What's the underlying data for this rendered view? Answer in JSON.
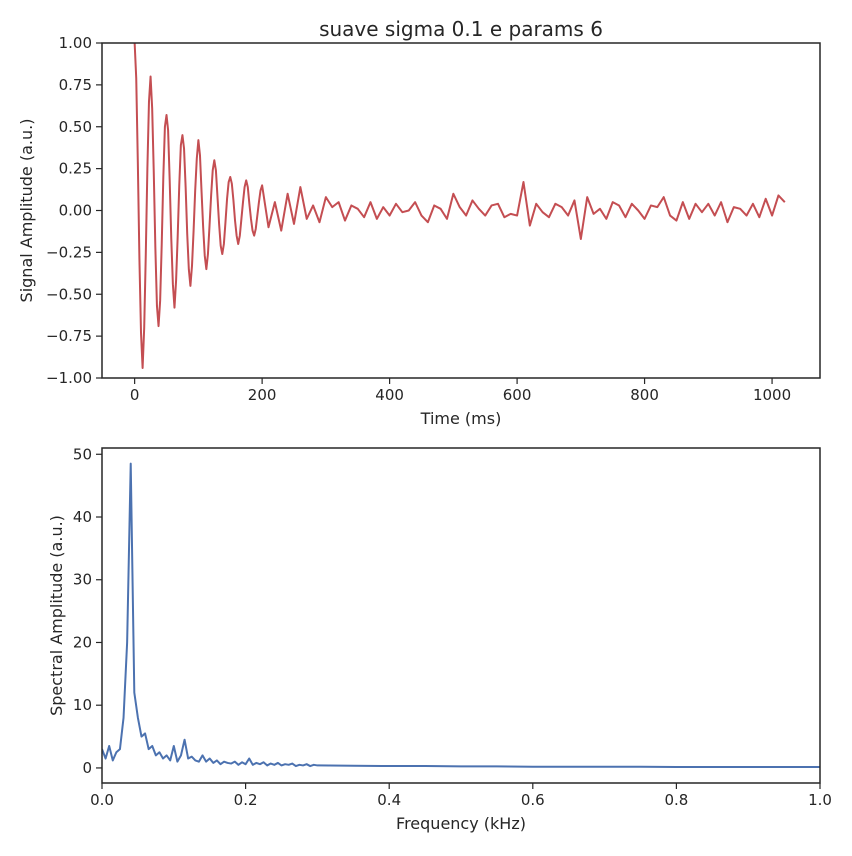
{
  "chart_data": [
    {
      "type": "line",
      "title": "suave sigma 0.1 e params 6",
      "xlabel": "Time (ms)",
      "ylabel": "Signal Amplitude (a.u.)",
      "color": "#c44e52",
      "x": [
        0,
        2.5,
        5,
        7.5,
        10,
        12.5,
        15,
        17.5,
        20,
        22.5,
        25,
        27.5,
        30,
        32.5,
        35,
        37.5,
        40,
        42.5,
        45,
        47.5,
        50,
        52.5,
        55,
        57.5,
        60,
        62.5,
        65,
        67.5,
        70,
        72.5,
        75,
        77.5,
        80,
        82.5,
        85,
        87.5,
        90,
        92.5,
        95,
        97.5,
        100,
        102.5,
        105,
        107.5,
        110,
        112.5,
        115,
        117.5,
        120,
        122.5,
        125,
        127.5,
        130,
        132.5,
        135,
        137.5,
        140,
        142.5,
        145,
        147.5,
        150,
        152.5,
        155,
        157.5,
        160,
        162.5,
        165,
        167.5,
        170,
        172.5,
        175,
        177.5,
        180,
        182.5,
        185,
        187.5,
        190,
        192.5,
        195,
        197.5,
        200,
        210,
        220,
        230,
        240,
        250,
        260,
        270,
        280,
        290,
        300,
        310,
        320,
        330,
        340,
        350,
        360,
        370,
        380,
        390,
        400,
        410,
        420,
        430,
        440,
        450,
        460,
        470,
        480,
        490,
        500,
        510,
        520,
        530,
        540,
        550,
        560,
        570,
        580,
        590,
        600,
        610,
        620,
        630,
        640,
        650,
        660,
        670,
        680,
        690,
        700,
        710,
        720,
        730,
        740,
        750,
        760,
        770,
        780,
        790,
        800,
        810,
        820,
        830,
        840,
        850,
        860,
        870,
        880,
        890,
        900,
        910,
        920,
        930,
        940,
        950,
        960,
        970,
        980,
        990,
        1000,
        1010,
        1020
      ],
      "values": [
        1.0,
        0.79,
        0.29,
        -0.29,
        -0.73,
        -0.94,
        -0.7,
        -0.26,
        0.25,
        0.65,
        0.8,
        0.61,
        0.23,
        -0.22,
        -0.57,
        -0.69,
        -0.54,
        -0.2,
        0.2,
        0.5,
        0.57,
        0.48,
        0.18,
        -0.17,
        -0.44,
        -0.58,
        -0.42,
        -0.16,
        0.15,
        0.39,
        0.45,
        0.37,
        0.14,
        -0.14,
        -0.35,
        -0.45,
        -0.33,
        -0.12,
        0.12,
        0.31,
        0.42,
        0.33,
        0.11,
        -0.1,
        -0.27,
        -0.35,
        -0.26,
        -0.09,
        0.09,
        0.24,
        0.3,
        0.24,
        0.08,
        -0.08,
        -0.21,
        -0.26,
        -0.2,
        -0.07,
        0.07,
        0.17,
        0.2,
        0.16,
        0.06,
        -0.06,
        -0.15,
        -0.2,
        -0.15,
        -0.05,
        0.05,
        0.14,
        0.18,
        0.14,
        0.04,
        -0.05,
        -0.12,
        -0.15,
        -0.11,
        -0.03,
        0.05,
        0.12,
        0.15,
        -0.1,
        0.05,
        -0.12,
        0.1,
        -0.08,
        0.14,
        -0.05,
        0.03,
        -0.07,
        0.08,
        0.02,
        0.05,
        -0.06,
        0.03,
        0.01,
        -0.04,
        0.05,
        -0.05,
        0.02,
        -0.03,
        0.04,
        -0.01,
        0.0,
        0.05,
        -0.03,
        -0.07,
        0.03,
        0.01,
        -0.05,
        0.1,
        0.02,
        -0.03,
        0.06,
        0.01,
        -0.03,
        0.03,
        0.04,
        -0.04,
        -0.02,
        -0.03,
        0.17,
        -0.09,
        0.04,
        -0.01,
        -0.04,
        0.04,
        0.02,
        -0.03,
        0.06,
        -0.17,
        0.08,
        -0.02,
        0.01,
        -0.05,
        0.05,
        0.03,
        -0.04,
        0.04,
        0.0,
        -0.05,
        0.03,
        0.02,
        0.08,
        -0.03,
        -0.06,
        0.05,
        -0.05,
        0.04,
        -0.01,
        0.04,
        -0.03,
        0.05,
        -0.07,
        0.02,
        0.01,
        -0.03,
        0.04,
        -0.04,
        0.07,
        -0.03,
        0.09,
        0.05
      ],
      "xlim": [
        -51.2,
        1075.2
      ],
      "ylim": [
        -1,
        1
      ],
      "xticks": [
        0,
        200,
        400,
        600,
        800,
        1000
      ],
      "yticks": [
        {
          "value": -1,
          "label": "−1.00"
        },
        {
          "value": -0.75,
          "label": "−0.75"
        },
        {
          "value": -0.5,
          "label": "−0.50"
        },
        {
          "value": -0.25,
          "label": "−0.25"
        },
        {
          "value": 0,
          "label": "0.00"
        },
        {
          "value": 0.25,
          "label": "0.25"
        },
        {
          "value": 0.5,
          "label": "0.50"
        },
        {
          "value": 0.75,
          "label": "0.75"
        },
        {
          "value": 1,
          "label": "1.00"
        }
      ]
    },
    {
      "type": "line",
      "xlabel": "Frequency (kHz)",
      "ylabel": "Spectral Amplitude (a.u.)",
      "color": "#4c72b0",
      "x": [
        0,
        0.005,
        0.01,
        0.015,
        0.02,
        0.025,
        0.03,
        0.035,
        0.04,
        0.045,
        0.05,
        0.055,
        0.06,
        0.065,
        0.07,
        0.075,
        0.08,
        0.085,
        0.09,
        0.095,
        0.1,
        0.105,
        0.11,
        0.115,
        0.12,
        0.125,
        0.13,
        0.135,
        0.14,
        0.145,
        0.15,
        0.155,
        0.16,
        0.165,
        0.17,
        0.175,
        0.18,
        0.185,
        0.19,
        0.195,
        0.2,
        0.205,
        0.21,
        0.215,
        0.22,
        0.225,
        0.23,
        0.235,
        0.24,
        0.245,
        0.25,
        0.255,
        0.26,
        0.265,
        0.27,
        0.275,
        0.28,
        0.285,
        0.29,
        0.295,
        0.3,
        0.35,
        0.4,
        0.45,
        0.5,
        0.55,
        0.6,
        0.65,
        0.7,
        0.75,
        0.8,
        0.85,
        0.9,
        0.95,
        1.0
      ],
      "values": [
        3,
        1.5,
        3.5,
        1.2,
        2.5,
        3,
        8,
        20,
        48.5,
        12,
        8,
        5,
        5.5,
        3,
        3.5,
        2,
        2.5,
        1.5,
        2,
        1.2,
        3.5,
        1,
        2,
        4.5,
        1.5,
        1.8,
        1.2,
        1,
        2,
        1,
        1.5,
        0.8,
        1.2,
        0.6,
        1,
        0.8,
        0.7,
        1,
        0.5,
        0.9,
        0.6,
        1.5,
        0.5,
        0.8,
        0.6,
        0.9,
        0.4,
        0.7,
        0.5,
        0.8,
        0.4,
        0.6,
        0.5,
        0.7,
        0.3,
        0.5,
        0.4,
        0.6,
        0.3,
        0.5,
        0.4,
        0.35,
        0.3,
        0.3,
        0.25,
        0.25,
        0.2,
        0.2,
        0.2,
        0.2,
        0.15,
        0.15,
        0.15,
        0.15,
        0.15
      ],
      "xlim": [
        0,
        1
      ],
      "ylim": [
        -2.4,
        51
      ],
      "xticks": [
        {
          "value": 0,
          "label": "0.0"
        },
        0.2,
        0.4,
        0.6,
        0.8,
        {
          "value": 1,
          "label": "1.0"
        }
      ],
      "yticks": [
        0,
        10,
        20,
        30,
        40,
        50
      ]
    }
  ]
}
